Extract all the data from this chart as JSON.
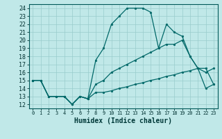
{
  "xlabel": "Humidex (Indice chaleur)",
  "bg_color": "#c0e8e8",
  "grid_color": "#99cccc",
  "line_color": "#006868",
  "xlim": [
    -0.5,
    23.5
  ],
  "ylim": [
    11.5,
    24.5
  ],
  "xticks": [
    0,
    1,
    2,
    3,
    4,
    5,
    6,
    7,
    8,
    9,
    10,
    11,
    12,
    13,
    14,
    15,
    16,
    17,
    18,
    19,
    20,
    21,
    22,
    23
  ],
  "yticks": [
    12,
    13,
    14,
    15,
    16,
    17,
    18,
    19,
    20,
    21,
    22,
    23,
    24
  ],
  "line_peak_x": [
    0,
    1,
    2,
    3,
    4,
    5,
    6,
    7,
    8,
    9,
    10,
    11,
    12,
    13,
    14,
    15,
    16,
    17,
    18,
    19,
    20,
    21,
    22,
    23
  ],
  "line_peak_y": [
    15,
    15,
    13,
    13,
    13,
    12,
    13,
    12.7,
    17.5,
    19,
    22,
    23,
    24,
    24,
    24,
    23.5,
    19,
    22,
    21,
    20.5,
    18,
    16.5,
    16,
    16.5
  ],
  "line_mid_x": [
    0,
    1,
    2,
    3,
    4,
    5,
    6,
    7,
    8,
    9,
    10,
    11,
    12,
    13,
    14,
    15,
    16,
    17,
    18,
    19,
    20,
    21,
    22,
    23
  ],
  "line_mid_y": [
    15,
    15,
    13,
    13,
    13,
    12,
    13,
    12.7,
    14.5,
    15,
    16,
    16.5,
    17,
    17.5,
    18,
    18.5,
    19,
    19.5,
    19.5,
    20,
    18,
    16.5,
    16.5,
    14.5
  ],
  "line_bot_x": [
    0,
    1,
    2,
    3,
    4,
    5,
    6,
    7,
    8,
    9,
    10,
    11,
    12,
    13,
    14,
    15,
    16,
    17,
    18,
    19,
    20,
    21,
    22,
    23
  ],
  "line_bot_y": [
    15,
    15,
    13,
    13,
    13,
    12,
    13,
    12.7,
    13.5,
    13.5,
    13.7,
    14,
    14.2,
    14.5,
    14.7,
    15,
    15.2,
    15.5,
    15.7,
    16,
    16.2,
    16.5,
    14,
    14.5
  ]
}
